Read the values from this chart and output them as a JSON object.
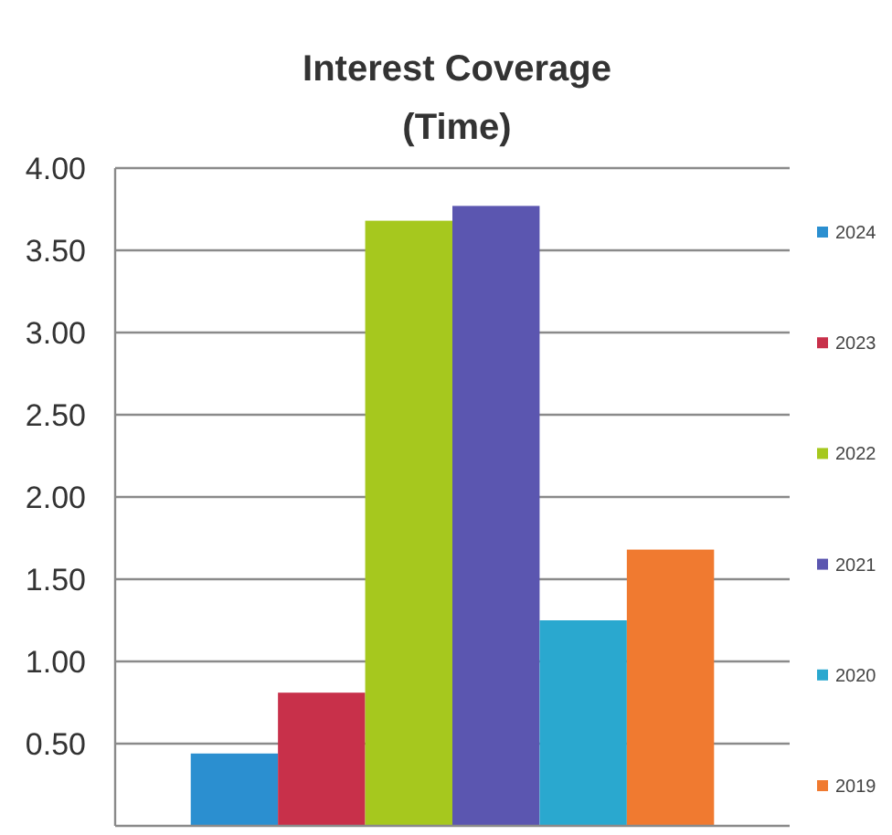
{
  "chart_data": {
    "type": "bar",
    "title": "Interest Coverage\n(Time)",
    "categories": [
      null
    ],
    "series": [
      {
        "name": "2024",
        "color": "#2b8fd0",
        "values": [
          0.44
        ]
      },
      {
        "name": "2023",
        "color": "#c8304a",
        "values": [
          0.81
        ]
      },
      {
        "name": "2022",
        "color": "#a6c81e",
        "values": [
          3.68
        ]
      },
      {
        "name": "2021",
        "color": "#5b56b0",
        "values": [
          3.77
        ]
      },
      {
        "name": "2020",
        "color": "#2aa8cf",
        "values": [
          1.25
        ]
      },
      {
        "name": "2019",
        "color": "#f07a30",
        "values": [
          1.68
        ]
      }
    ],
    "ylim": [
      0,
      4
    ],
    "yticks": [
      {
        "value": 0.5,
        "label": "0.50"
      },
      {
        "value": 1,
        "label": "1.00"
      },
      {
        "value": 1.5,
        "label": "1.50"
      },
      {
        "value": 2,
        "label": "2.00"
      },
      {
        "value": 2.5,
        "label": "2.50"
      },
      {
        "value": 3,
        "label": "3.00"
      },
      {
        "value": 3.5,
        "label": "3.50"
      },
      {
        "value": 4,
        "label": "4.00"
      }
    ],
    "grid": "y",
    "legend": "right",
    "tick_labels": "y"
  }
}
